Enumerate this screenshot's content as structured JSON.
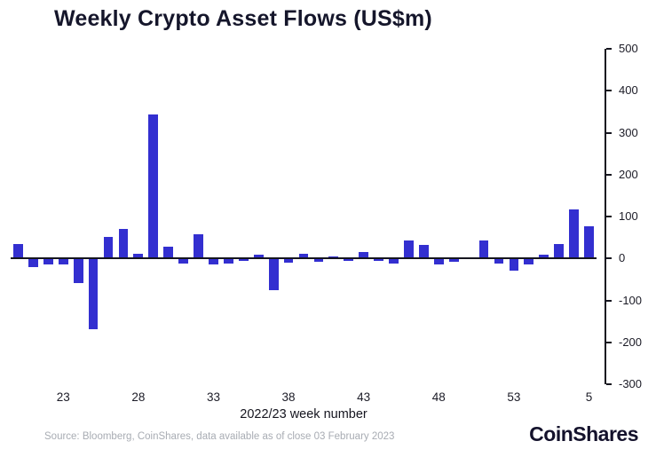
{
  "title": "Weekly Crypto Asset Flows (US$m)",
  "source_note": "Source: Bloomberg, CoinShares, data available as of close 03 February 2023",
  "brand": "CoinShares",
  "colors": {
    "bar": "#332fd0",
    "axis": "#15151f",
    "source_text": "#a8acb3"
  },
  "chart_data": {
    "type": "bar",
    "title": "Weekly Crypto Asset Flows (US$m)",
    "xlabel": "2022/23 week number",
    "ylabel": "",
    "ylim": [
      -300,
      500
    ],
    "grid": false,
    "legend": "none",
    "y_axis_position": "right",
    "bar_color": "#332fd0",
    "categories": [
      "20",
      "21",
      "22",
      "23",
      "24",
      "25",
      "26",
      "27",
      "28",
      "29",
      "30",
      "31",
      "32",
      "33",
      "34",
      "35",
      "36",
      "37",
      "38",
      "39",
      "40",
      "41",
      "42",
      "43",
      "44",
      "45",
      "46",
      "47",
      "48",
      "49",
      "50",
      "51",
      "52",
      "53",
      "1",
      "2",
      "3",
      "4",
      "5"
    ],
    "values": [
      35,
      -20,
      -15,
      -15,
      -58,
      -168,
      52,
      70,
      12,
      343,
      28,
      -12,
      57,
      -14,
      -12,
      -5,
      8,
      -75,
      -10,
      12,
      -8,
      5,
      -5,
      15,
      -6,
      -12,
      42,
      33,
      -15,
      -8,
      3,
      42,
      -12,
      -30,
      -15,
      10,
      35,
      117,
      76
    ],
    "x_tick_labels": [
      "23",
      "28",
      "33",
      "38",
      "43",
      "48",
      "53",
      "5"
    ],
    "y_tick_labels": [
      500,
      400,
      300,
      200,
      100,
      0,
      -100,
      -200,
      -300
    ]
  }
}
